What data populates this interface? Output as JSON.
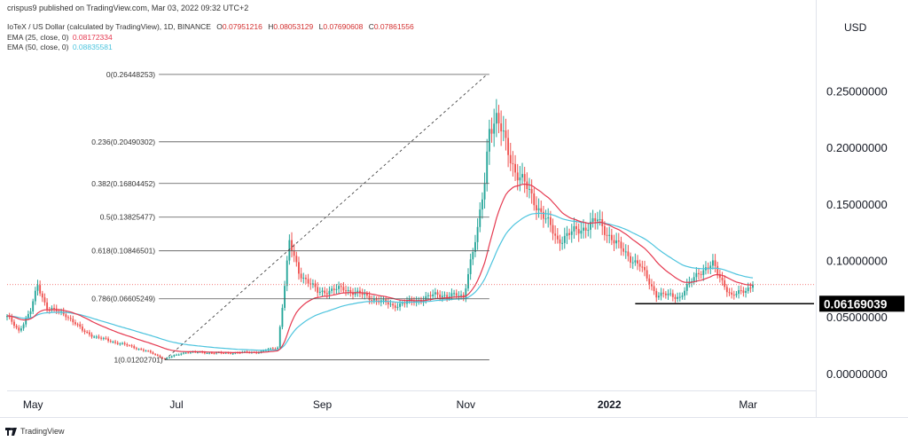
{
  "header": {
    "text": "crispus9 published on TradingView.com, Mar 03, 2022 09:32 UTC+2"
  },
  "legend": {
    "symbol": "IoTeX / US Dollar (calculated by TradingView), 1D, BINANCE",
    "ohlc": [
      {
        "label": "O",
        "value": "0.07951216"
      },
      {
        "label": "H",
        "value": "0.08053129"
      },
      {
        "label": "L",
        "value": "0.07690608"
      },
      {
        "label": "C",
        "value": "0.07861556"
      }
    ],
    "ema25": {
      "label": "EMA (25, close, 0)",
      "value": "0.08172334",
      "color": "#e53950"
    },
    "ema50": {
      "label": "EMA (50, close, 0)",
      "value": "0.08835581",
      "color": "#4dc4de"
    }
  },
  "currency": "USD",
  "footer": {
    "brand": "TradingView"
  },
  "chart_data": {
    "type": "candlestick",
    "symbol": "IoTeX / US Dollar",
    "interval": "1D",
    "exchange": "BINANCE",
    "ylim": [
      -0.015,
      0.295
    ],
    "y_ticks": [
      {
        "value": 0.25,
        "label": "0.25000000"
      },
      {
        "value": 0.2,
        "label": "0.20000000"
      },
      {
        "value": 0.15,
        "label": "0.15000000"
      },
      {
        "value": 0.1,
        "label": "0.10000000"
      },
      {
        "value": 0.05,
        "label": "0.05000000"
      },
      {
        "value": 0.0,
        "label": "0.00000000"
      }
    ],
    "x_ticks": [
      {
        "label": "May",
        "date": "2021-05-01",
        "bold": false
      },
      {
        "label": "Jul",
        "date": "2021-07-01",
        "bold": false
      },
      {
        "label": "Sep",
        "date": "2021-09-01",
        "bold": false
      },
      {
        "label": "Nov",
        "date": "2021-11-01",
        "bold": false
      },
      {
        "label": "2022",
        "date": "2022-01-01",
        "bold": true
      },
      {
        "label": "Mar",
        "date": "2022-03-01",
        "bold": false
      }
    ],
    "x_range": [
      "2021-04-20",
      "2022-03-29"
    ],
    "price_anchors": [
      [
        "2021-04-20",
        0.05
      ],
      [
        "2021-04-25",
        0.038
      ],
      [
        "2021-04-30",
        0.055
      ],
      [
        "2021-05-03",
        0.078
      ],
      [
        "2021-05-07",
        0.058
      ],
      [
        "2021-05-15",
        0.052
      ],
      [
        "2021-05-22",
        0.038
      ],
      [
        "2021-05-28",
        0.032
      ],
      [
        "2021-06-08",
        0.026
      ],
      [
        "2021-06-18",
        0.02
      ],
      [
        "2021-06-26",
        0.013
      ],
      [
        "2021-07-05",
        0.019
      ],
      [
        "2021-07-20",
        0.018
      ],
      [
        "2021-08-05",
        0.019
      ],
      [
        "2021-08-13",
        0.023
      ],
      [
        "2021-08-15",
        0.06
      ],
      [
        "2021-08-18",
        0.115
      ],
      [
        "2021-08-22",
        0.09
      ],
      [
        "2021-08-30",
        0.072
      ],
      [
        "2021-09-10",
        0.075
      ],
      [
        "2021-09-20",
        0.068
      ],
      [
        "2021-10-01",
        0.06
      ],
      [
        "2021-10-10",
        0.064
      ],
      [
        "2021-10-20",
        0.07
      ],
      [
        "2021-10-31",
        0.068
      ],
      [
        "2021-11-03",
        0.1
      ],
      [
        "2021-11-06",
        0.125
      ],
      [
        "2021-11-09",
        0.17
      ],
      [
        "2021-11-11",
        0.22
      ],
      [
        "2021-11-14",
        0.225
      ],
      [
        "2021-11-22",
        0.18
      ],
      [
        "2021-12-01",
        0.15
      ],
      [
        "2021-12-10",
        0.118
      ],
      [
        "2021-12-20",
        0.128
      ],
      [
        "2021-12-27",
        0.135
      ],
      [
        "2022-01-05",
        0.112
      ],
      [
        "2022-01-14",
        0.095
      ],
      [
        "2022-01-21",
        0.07
      ],
      [
        "2022-01-31",
        0.068
      ],
      [
        "2022-02-08",
        0.09
      ],
      [
        "2022-02-14",
        0.096
      ],
      [
        "2022-02-22",
        0.068
      ],
      [
        "2022-02-26",
        0.072
      ],
      [
        "2022-03-03",
        0.0786
      ]
    ],
    "last_price": {
      "value": 0.0786,
      "label": ""
    },
    "horizontal_line": {
      "value": 0.06169039,
      "from": "2022-01-12",
      "to": "2022-03-29",
      "label": "0.06169039"
    },
    "fibonacci": {
      "start": {
        "date": "2021-06-26",
        "value": 0.01202701
      },
      "end": {
        "date": "2021-11-10",
        "value": 0.26448253
      },
      "right_date": "2021-11-11",
      "levels": [
        {
          "ratio": "0",
          "value": 0.26448253,
          "label": "0(0.26448253)"
        },
        {
          "ratio": "0.236",
          "value": 0.20490302,
          "label": "0.236(0.20490302)"
        },
        {
          "ratio": "0.382",
          "value": 0.16804452,
          "label": "0.382(0.16804452)"
        },
        {
          "ratio": "0.5",
          "value": 0.13825477,
          "label": "0.5(0.13825477)"
        },
        {
          "ratio": "0.618",
          "value": 0.10846501,
          "label": "0.618(0.10846501)"
        },
        {
          "ratio": "0.786",
          "value": 0.06605249,
          "label": "0.786(0.06605249)"
        },
        {
          "ratio": "1",
          "value": 0.01202701,
          "label": "1(0.01202701)"
        }
      ]
    },
    "colors": {
      "up": "#26a69a",
      "down": "#ef5350",
      "ema25": "#e53950",
      "ema50": "#4dc4de",
      "fib_line": "#555555",
      "hline": "#000000",
      "last_price_line": "#ef5350",
      "axis_text": "#131722"
    }
  }
}
